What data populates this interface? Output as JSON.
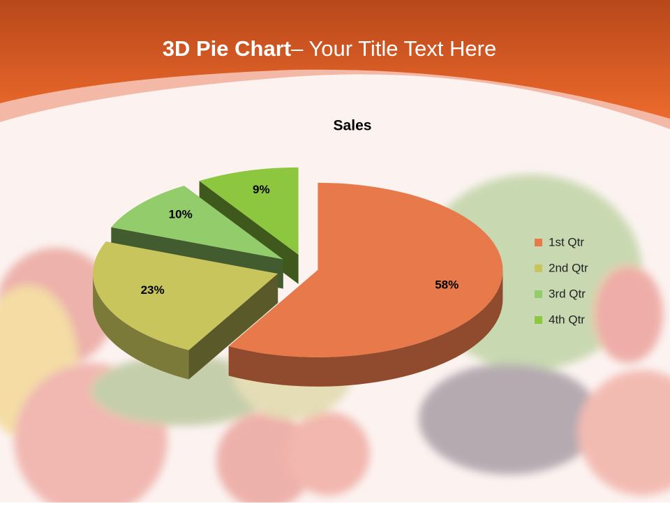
{
  "slide": {
    "title_bold": "3D Pie Chart",
    "title_rest": "– Your Title Text Here"
  },
  "chart_data": {
    "type": "pie",
    "title": "Sales",
    "categories": [
      "1st Qtr",
      "2nd Qtr",
      "3rd Qtr",
      "4th Qtr"
    ],
    "values": [
      58,
      23,
      10,
      9
    ],
    "value_labels": [
      "58%",
      "23%",
      "10%",
      "9%"
    ],
    "colors": [
      "#e8794a",
      "#c8c55c",
      "#93cd6b",
      "#8dc63f"
    ],
    "legend": "right"
  }
}
